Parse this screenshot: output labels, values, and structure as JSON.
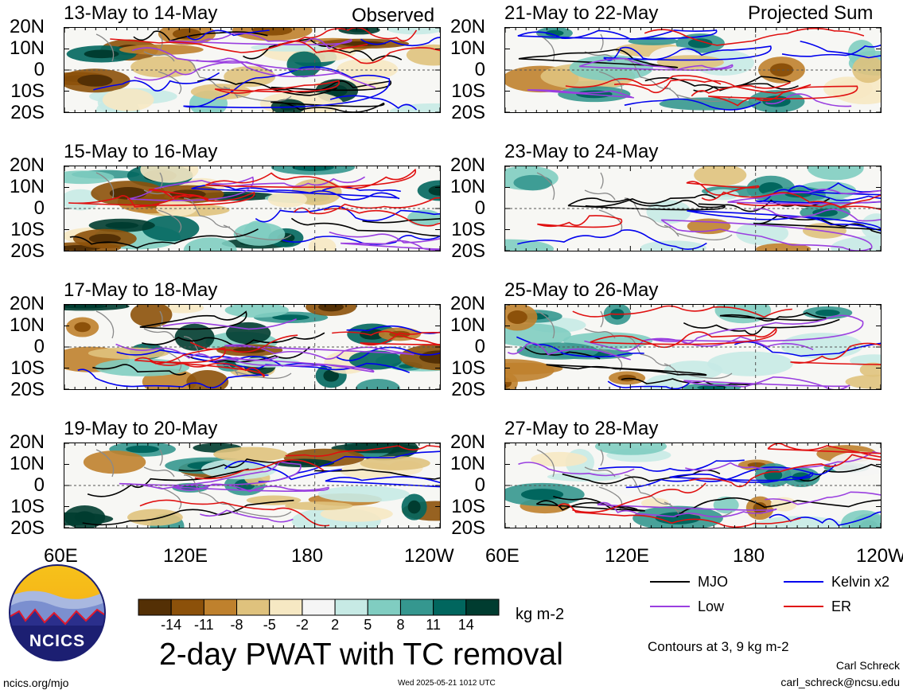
{
  "colors": {
    "mjo": "#000000",
    "kelvin": "#0000ee",
    "low": "#9a3fe0",
    "er": "#e01010",
    "land": "#8a8a8a"
  },
  "header": {
    "left_label": "Observed",
    "right_label": "Projected Sum"
  },
  "chart_data": {
    "type": "heatmap",
    "title": "2-day PWAT with TC removal",
    "y_ticks": [
      "20N",
      "10N",
      "0",
      "10S",
      "20S"
    ],
    "x_ticks": [
      "60E",
      "120E",
      "180",
      "120W"
    ],
    "panels": [
      {
        "period": "13-May to 14-May",
        "column": "Observed"
      },
      {
        "period": "15-May to 16-May",
        "column": "Observed"
      },
      {
        "period": "17-May to 18-May",
        "column": "Observed"
      },
      {
        "period": "19-May to 20-May",
        "column": "Observed"
      },
      {
        "period": "21-May to 22-May",
        "column": "Projected Sum"
      },
      {
        "period": "23-May to 24-May",
        "column": "Projected Sum"
      },
      {
        "period": "25-May to 26-May",
        "column": "Projected Sum"
      },
      {
        "period": "27-May to 28-May",
        "column": "Projected Sum"
      }
    ],
    "colorbar": {
      "tick_labels": [
        "-14",
        "-11",
        "-8",
        "-5",
        "-2",
        "2",
        "5",
        "8",
        "11",
        "14"
      ],
      "colors": [
        "#543005",
        "#8c510a",
        "#bf812d",
        "#dfc27d",
        "#f6e8c3",
        "#f5f5f5",
        "#c7eae5",
        "#80cdc1",
        "#35978f",
        "#01665e",
        "#003c30"
      ],
      "units": "kg m-2"
    },
    "legend": [
      {
        "label": "MJO",
        "color": "#000000"
      },
      {
        "label": "Kelvin x2",
        "color": "#0000ee"
      },
      {
        "label": "Low",
        "color": "#9a3fe0"
      },
      {
        "label": "ER",
        "color": "#e01010"
      }
    ],
    "contour_note": "Contours at 3, 9 kg m-2"
  },
  "footer": {
    "logo_text": "NCICS",
    "url": "ncics.org/mjo",
    "timestamp": "Wed 2025-05-21 1012 UTC",
    "author": "Carl Schreck",
    "email": "carl_schreck@ncsu.edu"
  }
}
